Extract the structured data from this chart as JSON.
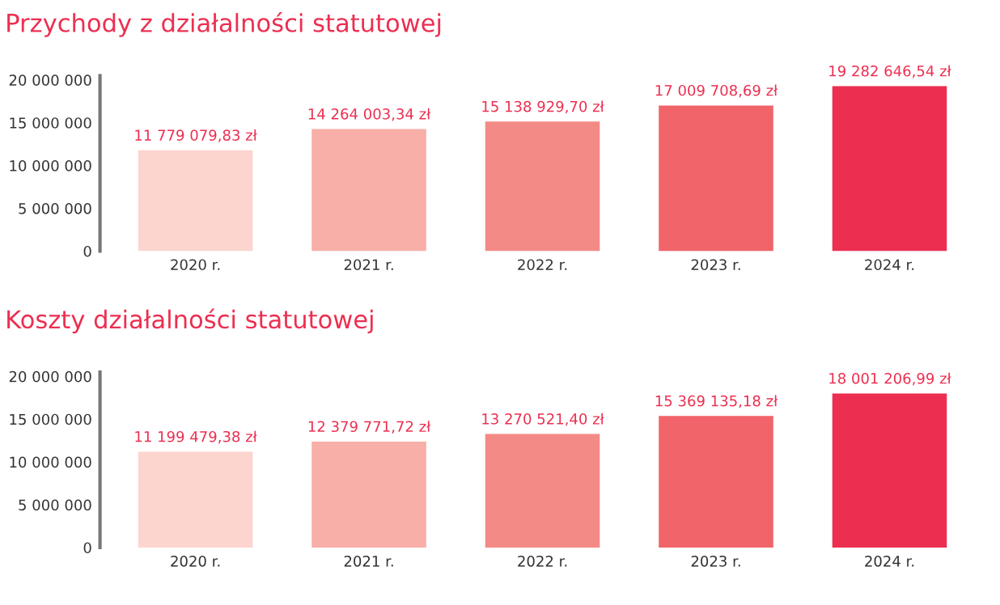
{
  "chart_data": [
    {
      "type": "bar",
      "title": "Przychody z działalności statutowej",
      "categories": [
        "2020 r.",
        "2021 r.",
        "2022 r.",
        "2023 r.",
        "2024 r."
      ],
      "values": [
        11779079.83,
        14264003.34,
        15138929.7,
        17009708.69,
        19282646.54
      ],
      "value_labels": [
        "11 779 079,83 zł",
        "14 264 003,34 zł",
        "15 138 929,70 zł",
        "17 009 708,69 zł",
        "19 282 646,54 zł"
      ],
      "colors": [
        "#fbd5ce",
        "#f7afa8",
        "#f48a86",
        "#f0646a",
        "#ec2f51"
      ],
      "ylim": [
        0,
        20500000
      ],
      "yticks": [
        {
          "value": 0,
          "label": "0"
        },
        {
          "value": 5000000,
          "label": "5 000 000"
        },
        {
          "value": 10000000,
          "label": "10 000 000"
        },
        {
          "value": 15000000,
          "label": "15 000 000"
        },
        {
          "value": 20000000,
          "label": "20 000 000"
        }
      ],
      "grid": false,
      "legend": false
    },
    {
      "type": "bar",
      "title": "Koszty działalności statutowej",
      "categories": [
        "2020 r.",
        "2021 r.",
        "2022 r.",
        "2023 r.",
        "2024 r."
      ],
      "values": [
        11199479.38,
        12379771.72,
        13270521.4,
        15369135.18,
        18001206.99
      ],
      "value_labels": [
        "11 199 479,38 zł",
        "12 379 771,72 zł",
        "13 270 521,40 zł",
        "15 369 135,18 zł",
        "18 001 206,99 zł"
      ],
      "colors": [
        "#fbd5ce",
        "#f7afa8",
        "#f48a86",
        "#f0646a",
        "#ec2f51"
      ],
      "ylim": [
        0,
        20500000
      ],
      "yticks": [
        {
          "value": 0,
          "label": "0"
        },
        {
          "value": 5000000,
          "label": "5 000 000"
        },
        {
          "value": 10000000,
          "label": "10 000 000"
        },
        {
          "value": 15000000,
          "label": "15 000 000"
        },
        {
          "value": 20000000,
          "label": "20 000 000"
        }
      ],
      "grid": false,
      "legend": false
    }
  ]
}
